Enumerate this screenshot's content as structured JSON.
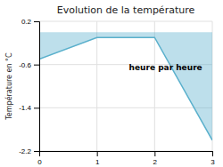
{
  "chart_data": {
    "type": "area",
    "title": "Evolution de la température",
    "y_label": "Température en °C",
    "annotation": "heure par heure",
    "x": [
      0,
      1,
      2,
      3
    ],
    "values": [
      -0.5,
      -0.1,
      -0.1,
      -2.0
    ],
    "color": "#5ab0cc",
    "xlim": [
      0,
      3
    ],
    "ylim": [
      -2.2,
      0.2
    ],
    "xticks": [
      0,
      1,
      2,
      3
    ],
    "yticks": [
      0.2,
      -0.6,
      -1.4,
      -2.2
    ],
    "grid": true
  }
}
